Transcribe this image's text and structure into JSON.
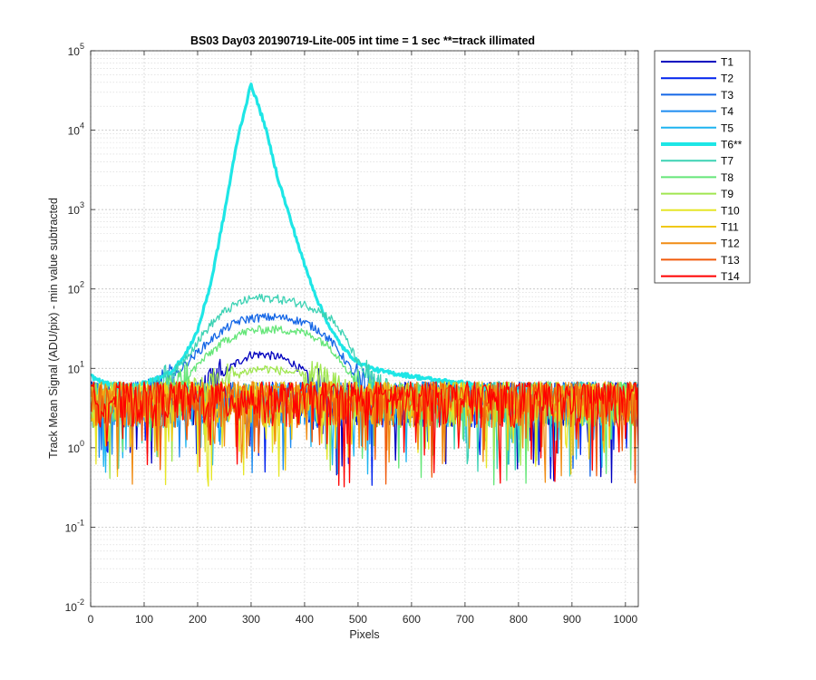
{
  "chart_data": {
    "type": "line",
    "title": "BS03 Day03 20190719-Lite-005 int time = 1 sec    **=track illimated",
    "xlabel": "Pixels",
    "ylabel": "Track Mean Signal (ADU/pix) - min value subtracted",
    "xlim": [
      0,
      1024
    ],
    "ylim": [
      0.01,
      100000
    ],
    "yscale": "log",
    "grid": true,
    "minor_grid": true,
    "legend_position": "outside-right",
    "x_ticks": [
      "0",
      "100",
      "200",
      "300",
      "400",
      "500",
      "600",
      "700",
      "800",
      "900",
      "1000"
    ],
    "y_ticks": [
      {
        "base": "10",
        "exp": "-2"
      },
      {
        "base": "10",
        "exp": "-1"
      },
      {
        "base": "10",
        "exp": "0"
      },
      {
        "base": "10",
        "exp": "1"
      },
      {
        "base": "10",
        "exp": "2"
      },
      {
        "base": "10",
        "exp": "3"
      },
      {
        "base": "10",
        "exp": "4"
      },
      {
        "base": "10",
        "exp": "5"
      }
    ],
    "x": [
      0,
      25,
      50,
      75,
      100,
      125,
      150,
      175,
      200,
      225,
      250,
      275,
      300,
      325,
      350,
      375,
      400,
      425,
      450,
      475,
      500,
      525,
      550,
      575,
      600,
      625,
      650,
      675,
      700,
      725,
      750,
      775,
      800,
      825,
      850,
      875,
      900,
      925,
      950,
      975,
      1000,
      1024
    ],
    "series": [
      {
        "name": "T1",
        "color": "#0000bf",
        "width": 1.3,
        "values": [
          4,
          4,
          4,
          4,
          4,
          4,
          4,
          4,
          4,
          6,
          9,
          12,
          15,
          15,
          14,
          12,
          9,
          6,
          4,
          4,
          4,
          4,
          4,
          4,
          4,
          4,
          4,
          4,
          4,
          4,
          4,
          4,
          4,
          4,
          4,
          4,
          4,
          4,
          4,
          4,
          4,
          4
        ]
      },
      {
        "name": "T2",
        "color": "#0022ee",
        "width": 1.3,
        "values": [
          4,
          4,
          4,
          4,
          4,
          4,
          4,
          4,
          4,
          4,
          4,
          4,
          4,
          4,
          4,
          4,
          4,
          4,
          4,
          4,
          4,
          4,
          4,
          4,
          4,
          4,
          4,
          4,
          4,
          4,
          4,
          4,
          4,
          4,
          4,
          4,
          4,
          4,
          4,
          4,
          4,
          4
        ]
      },
      {
        "name": "T3",
        "color": "#1466e6",
        "width": 1.3,
        "values": [
          4,
          4,
          4,
          4,
          4,
          5,
          7,
          11,
          16,
          23,
          31,
          39,
          43,
          44,
          44,
          42,
          38,
          31,
          22,
          13,
          7,
          5,
          4,
          4,
          4,
          4,
          4,
          4,
          4,
          4,
          4,
          4,
          4,
          4,
          4,
          4,
          4,
          4,
          4,
          4,
          4,
          4
        ]
      },
      {
        "name": "T4",
        "color": "#1e8cf0",
        "width": 1.3,
        "values": [
          4,
          4,
          4,
          4,
          4,
          4,
          4,
          4,
          4,
          4,
          4,
          4,
          4,
          4,
          4,
          4,
          4,
          4,
          4,
          4,
          4,
          4,
          4,
          4,
          4,
          4,
          4,
          4,
          4,
          4,
          4,
          4,
          4,
          4,
          4,
          4,
          4,
          4,
          4,
          4,
          4,
          4
        ]
      },
      {
        "name": "T5",
        "color": "#1eb4f0",
        "width": 1.3,
        "values": [
          4,
          4,
          4,
          4,
          4,
          4,
          4,
          4,
          4,
          4,
          4,
          4,
          4,
          4,
          4,
          4,
          4,
          4,
          4,
          4,
          4,
          4,
          4,
          4,
          4,
          4,
          4,
          4,
          4,
          4,
          4,
          4,
          4,
          4,
          4,
          4,
          4,
          4,
          4,
          4,
          4,
          4
        ]
      },
      {
        "name": "T6**",
        "color": "#1ee6e6",
        "width": 3.2,
        "values": [
          8,
          6.5,
          6,
          6,
          6.5,
          7.5,
          9,
          14,
          30,
          120,
          900,
          8000,
          38000,
          12000,
          2500,
          700,
          200,
          70,
          30,
          17,
          12,
          10,
          9,
          8.5,
          8,
          7.5,
          7,
          6.8,
          6.5,
          6,
          5.5,
          5.3,
          5,
          5,
          5,
          5,
          5,
          5,
          5,
          5,
          5,
          5
        ]
      },
      {
        "name": "T7",
        "color": "#3cd2b4",
        "width": 1.3,
        "values": [
          4,
          4,
          4,
          4,
          4,
          5,
          8,
          13,
          22,
          36,
          52,
          66,
          76,
          78,
          75,
          70,
          64,
          55,
          42,
          25,
          12,
          6,
          4.5,
          4,
          4,
          4,
          4,
          4,
          4,
          4,
          4,
          4,
          4,
          4,
          4,
          4,
          4,
          4,
          4,
          4,
          4,
          4
        ]
      },
      {
        "name": "T8",
        "color": "#64e678",
        "width": 1.3,
        "values": [
          4,
          4,
          4,
          4,
          4,
          4,
          5,
          7,
          11,
          16,
          22,
          27,
          30,
          31,
          31,
          30,
          28,
          24,
          18,
          11,
          6,
          4.5,
          4,
          4,
          4,
          4,
          4,
          4,
          4,
          4,
          4,
          4,
          4,
          4,
          4,
          4,
          4,
          4,
          4,
          4,
          4,
          4
        ]
      },
      {
        "name": "T9",
        "color": "#a0e650",
        "width": 1.3,
        "values": [
          4,
          4,
          4,
          4,
          4,
          4,
          4,
          4,
          5,
          6,
          7,
          8.5,
          9.5,
          10,
          9.5,
          9,
          8,
          7,
          5.5,
          4.5,
          4,
          4,
          4,
          4,
          4,
          4,
          4,
          4,
          4,
          4,
          4,
          4,
          4,
          4,
          4,
          4,
          4,
          4,
          4,
          4,
          4,
          4
        ]
      },
      {
        "name": "T10",
        "color": "#e6e628",
        "width": 1.3,
        "values": [
          4,
          4,
          4,
          4,
          4,
          4,
          4,
          4,
          4,
          4,
          4,
          4,
          4,
          4,
          4,
          4,
          4,
          4,
          4,
          4,
          4,
          4,
          4,
          4,
          4,
          4,
          4,
          4,
          4,
          4,
          4,
          4,
          4,
          4,
          4,
          4,
          4,
          4,
          4,
          4,
          4,
          4
        ]
      },
      {
        "name": "T11",
        "color": "#f0c814",
        "width": 1.3,
        "values": [
          4,
          4,
          4,
          4,
          4,
          4,
          4,
          4,
          4,
          4,
          4,
          4,
          4,
          4,
          4,
          4,
          4,
          4,
          4,
          4,
          4,
          4,
          4,
          4,
          4,
          4,
          4,
          4,
          4,
          4,
          4,
          4,
          4,
          4,
          4,
          4,
          4,
          4,
          4,
          4,
          4,
          4
        ]
      },
      {
        "name": "T12",
        "color": "#f08c14",
        "width": 1.3,
        "values": [
          4,
          4,
          4,
          4,
          4,
          4,
          4,
          4,
          4,
          4,
          4,
          4,
          4,
          4,
          4,
          4,
          4,
          4,
          4,
          4,
          4,
          4,
          4,
          4,
          4,
          4,
          4,
          4,
          4,
          4,
          4,
          4,
          4,
          4,
          4,
          4,
          4,
          4,
          4,
          4,
          4,
          4
        ]
      },
      {
        "name": "T13",
        "color": "#f05a0a",
        "width": 1.3,
        "values": [
          4,
          4,
          4,
          4,
          4,
          4,
          4,
          4,
          4,
          4,
          4,
          4,
          4,
          4,
          4,
          4,
          4,
          4,
          4,
          4,
          4,
          4,
          4,
          4,
          4,
          4,
          4,
          4,
          4,
          4,
          4,
          4,
          4,
          4,
          4,
          4,
          4,
          4,
          4,
          4,
          4,
          4
        ]
      },
      {
        "name": "T14",
        "color": "#ff0000",
        "width": 1.3,
        "values": [
          4,
          4,
          4,
          4,
          4,
          4,
          4,
          4,
          4,
          4,
          4,
          4,
          4,
          4,
          4,
          4,
          4,
          4,
          4,
          4,
          4,
          4,
          4,
          4,
          4,
          4,
          4,
          4,
          4,
          4,
          4,
          4,
          4,
          4,
          4,
          4,
          4,
          4,
          4,
          4,
          4,
          4
        ]
      }
    ]
  }
}
